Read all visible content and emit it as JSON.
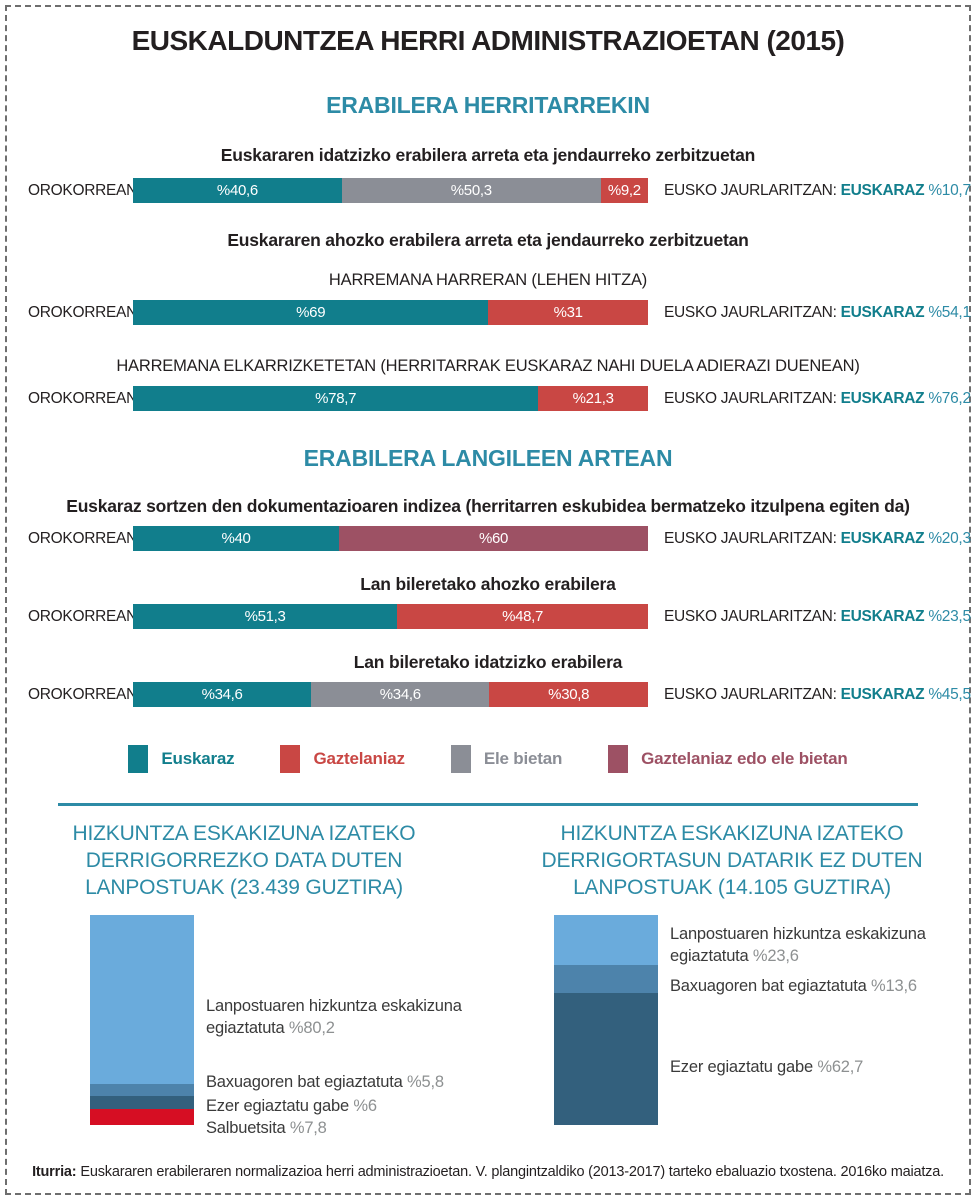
{
  "page": {
    "title": "EUSKALDUNTZEA HERRI ADMINISTRAZIOETAN (2015)",
    "footer": {
      "label": "Iturria:",
      "text": "Euskararen erabileraren normalizazioa herri administrazioetan. V. plangintzaldiko (2013-2017) tarteko ebaluazio txostena. 2016ko maiatza."
    }
  },
  "colors": {
    "euskaraz": "#117e8c",
    "gaztelaniaz": "#c94744",
    "ele_bietan": "#8b8e96",
    "gaztelaniaz_edo_ele_bietan": "#9d5164",
    "accent_teal": "#2d8ba6",
    "annot_highlight": "#117e8c",
    "annot_value": "#2d8ba6",
    "light_blue": "#6aabdc",
    "mid_blue": "#4d83ab",
    "dark_blue": "#33607d",
    "bright_red": "#d60e23",
    "divider": "#2d8ba6"
  },
  "sections": [
    {
      "header": "ERABILERA HERRITARREKIN"
    },
    {
      "header": "ERABILERA LANGILEEN ARTEAN"
    }
  ],
  "legend": {
    "items": [
      {
        "label": "Euskaraz",
        "color": "#117e8c"
      },
      {
        "label": "Gaztelaniaz",
        "color": "#c94744"
      },
      {
        "label": "Ele bietan",
        "color": "#8b8e96"
      },
      {
        "label": "Gaztelaniaz edo ele bietan",
        "color": "#9d5164"
      }
    ]
  },
  "chart_data": [
    {
      "type": "bar",
      "subtype": "stacked-horizontal",
      "section": "ERABILERA HERRITARREKIN",
      "title": "Euskararen idatzizko erabilera arreta eta jendaurreko zerbitzuetan",
      "row_label": "OROKORREAN:",
      "segments": [
        {
          "name": "Euskaraz",
          "value": 40.6,
          "label": "%40,6",
          "color": "#117e8c"
        },
        {
          "name": "Ele bietan",
          "value": 50.3,
          "label": "%50,3",
          "color": "#8b8e96"
        },
        {
          "name": "Gaztelaniaz",
          "value": 9.2,
          "label": "%9,2",
          "color": "#c94744"
        }
      ],
      "annotation": {
        "prefix": "EUSKO JAURLARITZAN:",
        "highlight": "EUSKARAZ",
        "value": "%10,7"
      }
    },
    {
      "type": "bar",
      "subtype": "stacked-horizontal",
      "section": "ERABILERA HERRITARREKIN",
      "title": "Euskararen ahozko erabilera arreta eta jendaurreko zerbitzuetan",
      "subtitle": "HARREMANA HARRERAN (LEHEN HITZA)",
      "row_label": "OROKORREAN:",
      "segments": [
        {
          "name": "Euskaraz",
          "value": 69,
          "label": "%69",
          "color": "#117e8c"
        },
        {
          "name": "Gaztelaniaz",
          "value": 31,
          "label": "%31",
          "color": "#c94744"
        }
      ],
      "annotation": {
        "prefix": "EUSKO JAURLARITZAN:",
        "highlight": "EUSKARAZ",
        "value": "%54,1"
      }
    },
    {
      "type": "bar",
      "subtype": "stacked-horizontal",
      "section": "ERABILERA HERRITARREKIN",
      "subtitle": "HARREMANA ELKARRIZKETETAN (HERRITARRAK EUSKARAZ NAHI DUELA ADIERAZI DUENEAN)",
      "row_label": "OROKORREAN:",
      "segments": [
        {
          "name": "Euskaraz",
          "value": 78.7,
          "label": "%78,7",
          "color": "#117e8c"
        },
        {
          "name": "Gaztelaniaz",
          "value": 21.3,
          "label": "%21,3",
          "color": "#c94744"
        }
      ],
      "annotation": {
        "prefix": "EUSKO JAURLARITZAN:",
        "highlight": "EUSKARAZ",
        "value": "%76,2"
      }
    },
    {
      "type": "bar",
      "subtype": "stacked-horizontal",
      "section": "ERABILERA LANGILEEN ARTEAN",
      "title": "Euskaraz sortzen den dokumentazioaren indizea (herritarren eskubidea bermatzeko itzulpena egiten da)",
      "row_label": "OROKORREAN:",
      "segments": [
        {
          "name": "Euskaraz",
          "value": 40,
          "label": "%40",
          "color": "#117e8c"
        },
        {
          "name": "Gaztelaniaz edo ele bietan",
          "value": 60,
          "label": "%60",
          "color": "#9d5164"
        }
      ],
      "annotation": {
        "prefix": "EUSKO JAURLARITZAN:",
        "highlight": "EUSKARAZ",
        "value": "%20,3"
      }
    },
    {
      "type": "bar",
      "subtype": "stacked-horizontal",
      "section": "ERABILERA LANGILEEN ARTEAN",
      "title": "Lan bileretako ahozko erabilera",
      "row_label": "OROKORREAN:",
      "segments": [
        {
          "name": "Euskaraz",
          "value": 51.3,
          "label": "%51,3",
          "color": "#117e8c"
        },
        {
          "name": "Gaztelaniaz",
          "value": 48.7,
          "label": "%48,7",
          "color": "#c94744"
        }
      ],
      "annotation": {
        "prefix": "EUSKO JAURLARITZAN:",
        "highlight": "EUSKARAZ",
        "value": "%23,5"
      }
    },
    {
      "type": "bar",
      "subtype": "stacked-horizontal",
      "section": "ERABILERA LANGILEEN ARTEAN",
      "title": "Lan bileretako idatzizko erabilera",
      "row_label": "OROKORREAN:",
      "segments": [
        {
          "name": "Euskaraz",
          "value": 34.6,
          "label": "%34,6",
          "color": "#117e8c"
        },
        {
          "name": "Ele bietan",
          "value": 34.6,
          "label": "%34,6",
          "color": "#8b8e96"
        },
        {
          "name": "Gaztelaniaz",
          "value": 30.8,
          "label": "%30,8",
          "color": "#c94744"
        }
      ],
      "annotation": {
        "prefix": "EUSKO JAURLARITZAN:",
        "highlight": "EUSKARAZ",
        "value": "%45,5"
      }
    },
    {
      "type": "bar",
      "subtype": "stacked-vertical",
      "title_lines": [
        "HIZKUNTZA ESKAKIZUNA IZATEKO",
        "DERRIGORREZKO DATA DUTEN",
        "LANPOSTUAK (23.439 GUZTIRA)"
      ],
      "total": "23.439",
      "segments": [
        {
          "label": "Lanpostuaren hizkuntza eskakizuna egiaztatuta",
          "value_label": "%80,2",
          "value": 80.2,
          "color": "#6aabdc"
        },
        {
          "label": "Baxuagoren bat egiaztatuta",
          "value_label": "%5,8",
          "value": 5.8,
          "color": "#4d83ab"
        },
        {
          "label": "Ezer egiaztatu gabe",
          "value_label": "%6",
          "value": 6,
          "color": "#33607d"
        },
        {
          "label": "Salbuetsita",
          "value_label": "%7,8",
          "value": 7.8,
          "color": "#d60e23"
        }
      ]
    },
    {
      "type": "bar",
      "subtype": "stacked-vertical",
      "title_lines": [
        "HIZKUNTZA ESKAKIZUNA IZATEKO",
        "DERRIGORTASUN DATARIK EZ DUTEN",
        "LANPOSTUAK (14.105 GUZTIRA)"
      ],
      "total": "14.105",
      "segments": [
        {
          "label": "Lanpostuaren hizkuntza eskakizuna egiaztatuta",
          "value_label": "%23,6",
          "value": 23.6,
          "color": "#6aabdc"
        },
        {
          "label": "Baxuagoren bat egiaztatuta",
          "value_label": "%13,6",
          "value": 13.6,
          "color": "#4d83ab"
        },
        {
          "label": "Ezer egiaztatu gabe",
          "value_label": "%62,7",
          "value": 62.7,
          "color": "#33607d"
        }
      ]
    }
  ]
}
